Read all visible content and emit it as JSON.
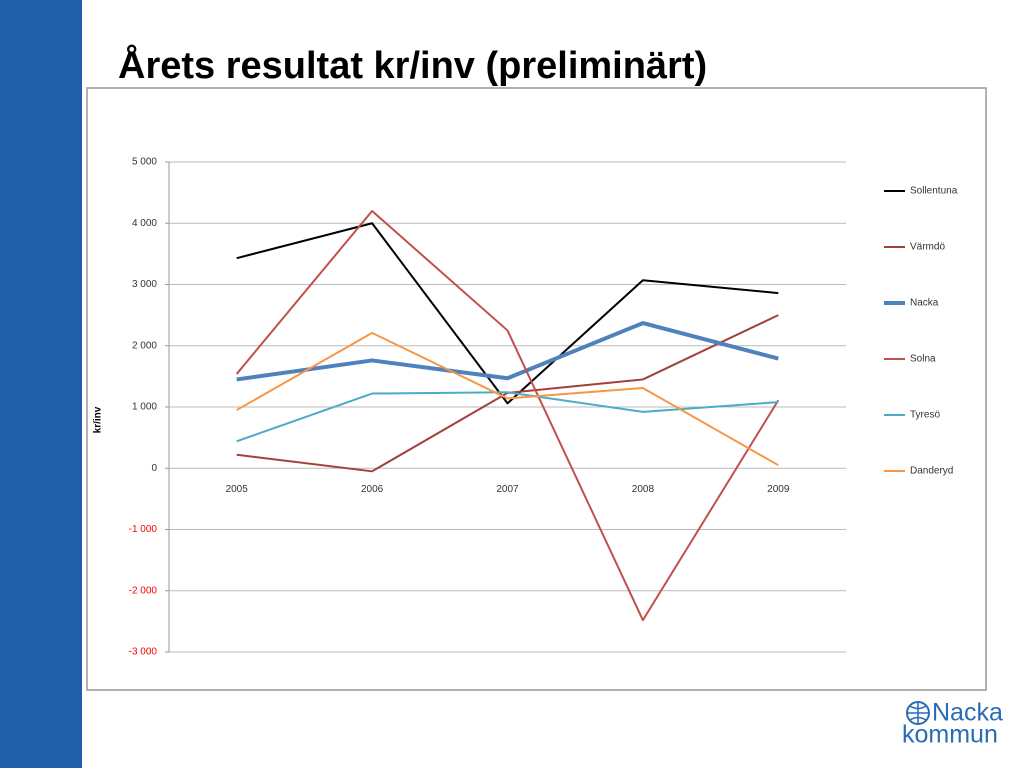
{
  "title": "Årets resultat kr/inv   (preliminärt)",
  "logo": {
    "line1": "Nacka",
    "line2": "kommun"
  },
  "chart_data": {
    "type": "line",
    "y_label": "kr/inv",
    "categories": [
      "2005",
      "2006",
      "2007",
      "2008",
      "2009"
    ],
    "series": [
      {
        "name": "Sollentuna",
        "color": "#000000",
        "line_width": 2,
        "values": [
          3430,
          4000,
          1060,
          3070,
          2860
        ]
      },
      {
        "name": "Värmdö",
        "color": "#a0413c",
        "line_width": 2,
        "values": [
          220,
          -50,
          1230,
          1450,
          2500
        ]
      },
      {
        "name": "Nacka",
        "color": "#4f81bd",
        "line_width": 4,
        "values": [
          1450,
          1760,
          1470,
          2370,
          1790
        ]
      },
      {
        "name": "Solna",
        "color": "#c0504d",
        "line_width": 2,
        "values": [
          1540,
          4200,
          2250,
          -2480,
          1110
        ]
      },
      {
        "name": "Tyresö",
        "color": "#4bacc6",
        "line_width": 2,
        "values": [
          440,
          1220,
          1240,
          920,
          1080
        ]
      },
      {
        "name": "Danderyd",
        "color": "#f79646",
        "line_width": 2,
        "values": [
          950,
          2210,
          1140,
          1310,
          50
        ]
      }
    ],
    "ylim": [
      -3000,
      5000
    ],
    "yticks": [
      {
        "value": -3000,
        "label": "-3 000"
      },
      {
        "value": -2000,
        "label": "-2 000"
      },
      {
        "value": -1000,
        "label": "-1 000"
      },
      0,
      {
        "value": 1000,
        "label": "1 000"
      },
      {
        "value": 2000,
        "label": "2 000"
      },
      {
        "value": 3000,
        "label": "3 000"
      },
      {
        "value": 4000,
        "label": "4 000"
      },
      {
        "value": 5000,
        "label": "5 000"
      }
    ],
    "negative_tick_color": "#ff0000",
    "grid": true,
    "legend": "right"
  }
}
